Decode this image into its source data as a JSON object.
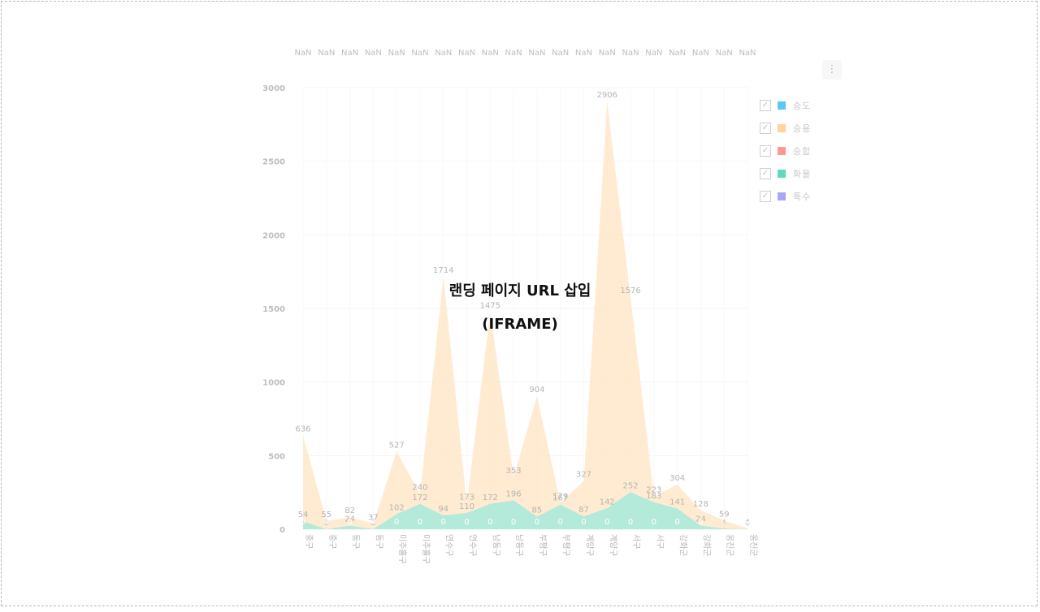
{
  "overlay": {
    "line1": "랜딩 페이지 URL 삽입",
    "line2": "(IFRAME)"
  },
  "menu": {
    "icon": "kebab-vertical-icon",
    "glyph": "⋮"
  },
  "legend": [
    {
      "label": "승도",
      "color": "#5bc8f0",
      "checked": true
    },
    {
      "label": "승용",
      "color": "#ffd39b",
      "checked": true
    },
    {
      "label": "승합",
      "color": "#f99a8e",
      "checked": true
    },
    {
      "label": "화물",
      "color": "#5fd9c0",
      "checked": true
    },
    {
      "label": "특수",
      "color": "#a9a6f4",
      "checked": true
    }
  ],
  "chart_data": {
    "type": "area",
    "categories": [
      "중구",
      "중구",
      "동구",
      "동구",
      "미추홀구",
      "미추홀구",
      "연수구",
      "연수구",
      "남동구",
      "남동구",
      "부평구",
      "부평구",
      "계양구",
      "계양구",
      "서구",
      "서구",
      "강화군",
      "강화군",
      "옹진군",
      "옹진군"
    ],
    "top_tick_labels": [
      "NaN",
      "NaN",
      "NaN",
      "NaN",
      "NaN",
      "NaN",
      "NaN",
      "NaN",
      "NaN",
      "NaN",
      "NaN",
      "NaN",
      "NaN",
      "NaN",
      "NaN",
      "NaN",
      "NaN",
      "NaN",
      "NaN",
      "NaN"
    ],
    "ylim": [
      0,
      3000
    ],
    "yticks": [
      0,
      500,
      1000,
      1500,
      2000,
      2500,
      3000
    ],
    "grid": true,
    "legend_position": "right",
    "series": [
      {
        "name": "승용",
        "color": "#ffd39b",
        "values": [
          636,
          55,
          82,
          37,
          527,
          240,
          1714,
          173,
          1475,
          353,
          904,
          179,
          327,
          2906,
          1576,
          223,
          304,
          128,
          59,
          6
        ]
      },
      {
        "name": "화물",
        "color": "#5fd9c0",
        "values": [
          54,
          0,
          24,
          0,
          102,
          172,
          94,
          110,
          172,
          196,
          85,
          167,
          87,
          142,
          252,
          183,
          141,
          24,
          4,
          0
        ]
      },
      {
        "name": "승도",
        "color": "#5bc8f0",
        "values": [
          0,
          0,
          0,
          0,
          0,
          0,
          0,
          0,
          0,
          0,
          0,
          0,
          0,
          0,
          0,
          0,
          0,
          0,
          0,
          0
        ]
      },
      {
        "name": "승합",
        "color": "#f99a8e",
        "values": [
          0,
          0,
          0,
          0,
          0,
          0,
          0,
          0,
          0,
          0,
          0,
          0,
          0,
          0,
          0,
          0,
          0,
          0,
          0,
          0
        ]
      },
      {
        "name": "특수",
        "color": "#a9a6f4",
        "values": [
          0,
          0,
          0,
          0,
          0,
          0,
          0,
          0,
          0,
          0,
          0,
          0,
          0,
          0,
          0,
          0,
          0,
          0,
          0,
          0
        ]
      }
    ]
  }
}
